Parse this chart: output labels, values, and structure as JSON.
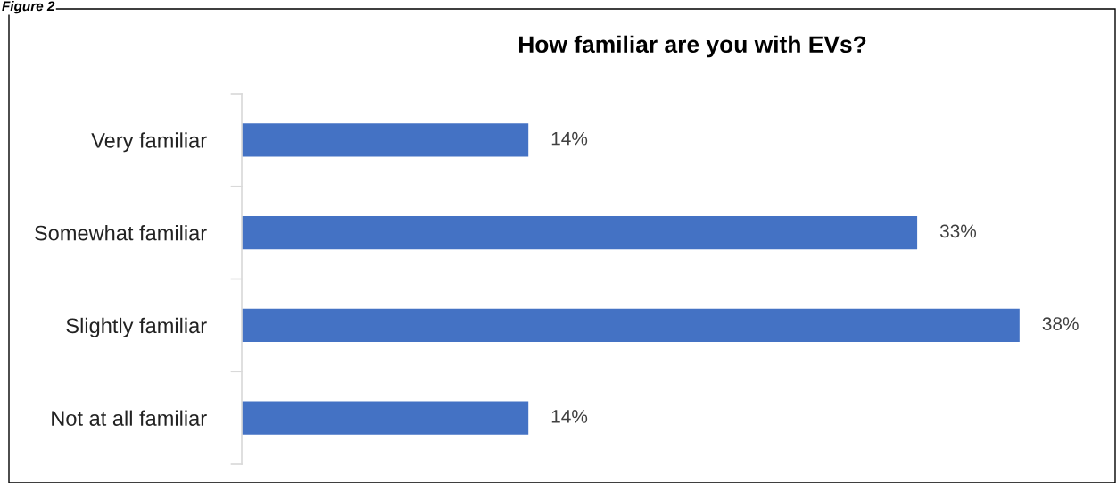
{
  "chart_data": {
    "type": "bar",
    "orientation": "horizontal",
    "title": "How familiar are you with EVs?",
    "annotations": [
      "Figure 2"
    ],
    "categories": [
      "Very familiar",
      "Somewhat familiar",
      "Slightly familiar",
      "Not at all familiar"
    ],
    "values": [
      14,
      33,
      38,
      14
    ],
    "value_labels": [
      "14%",
      "33%",
      "38%",
      "14%"
    ],
    "color": "#4472c4",
    "grid": false,
    "legend": false,
    "tick_labels": "y"
  }
}
